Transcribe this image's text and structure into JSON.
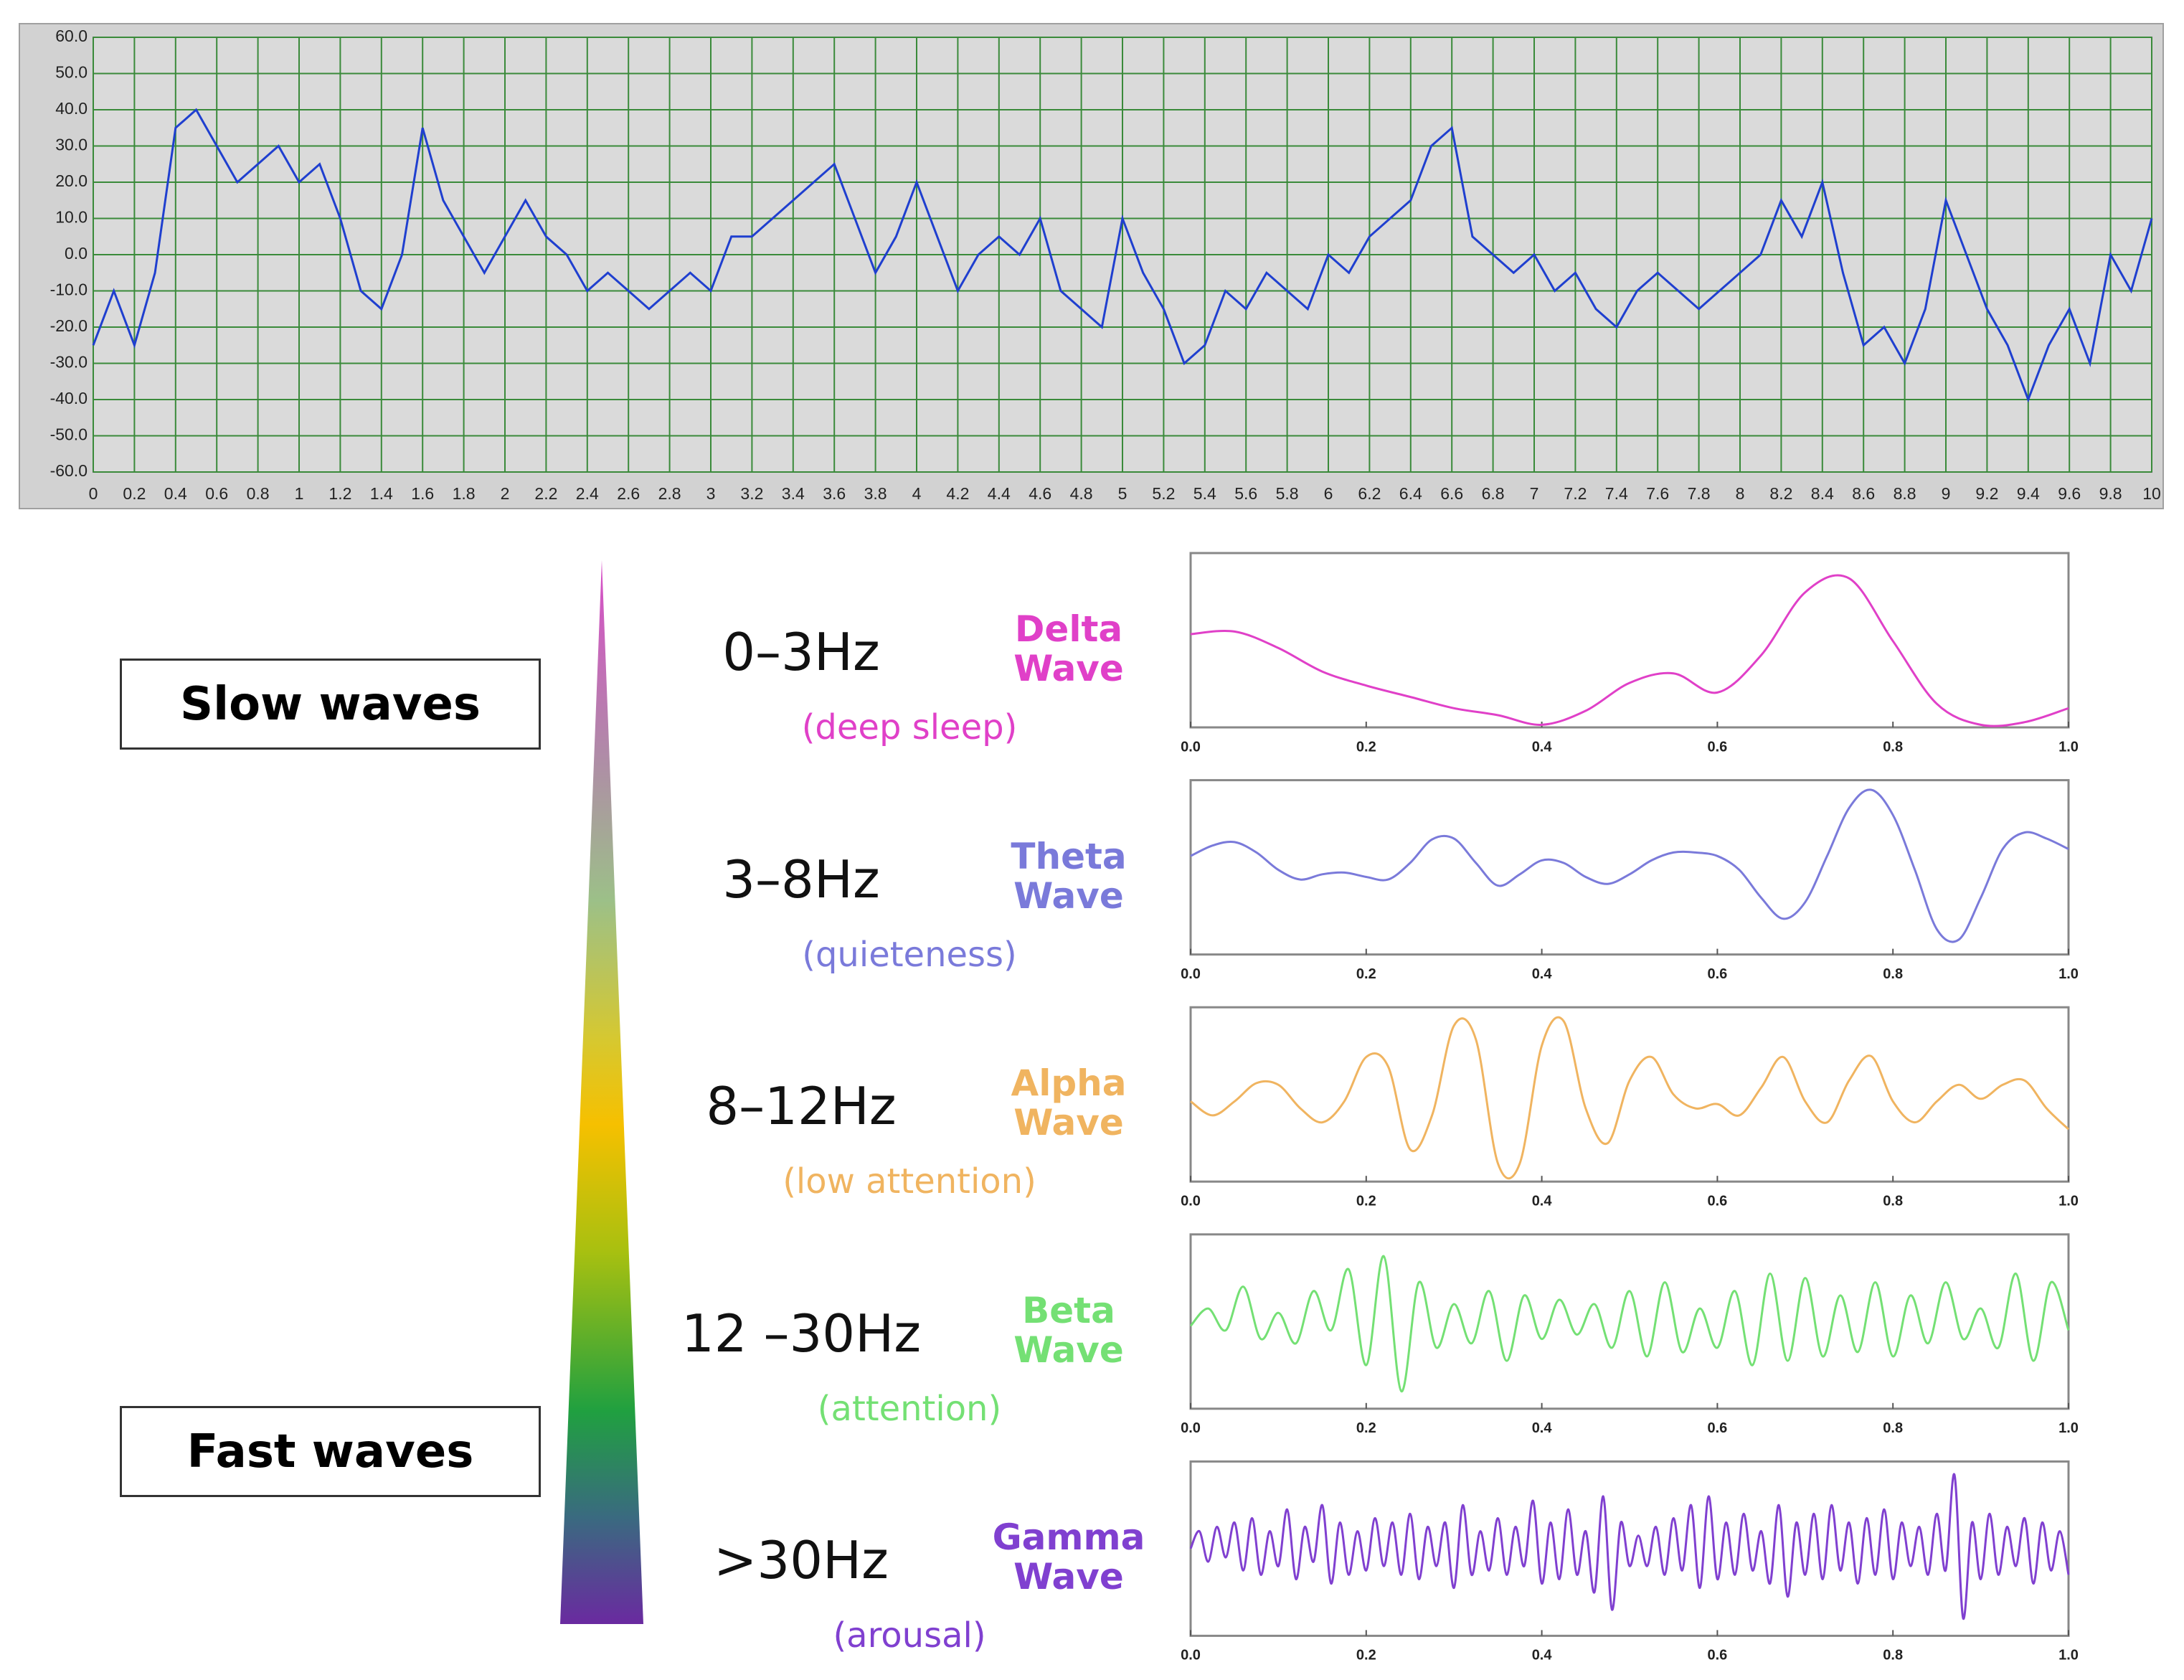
{
  "boxes": [
    "Slow waves",
    "Fast waves"
  ],
  "chart_data": [
    {
      "type": "line",
      "color": "#1f3fcf",
      "x": [
        0,
        0.1,
        0.2,
        0.3,
        0.4,
        0.5,
        0.6,
        0.7,
        0.8,
        0.9,
        1,
        1.1,
        1.2,
        1.3,
        1.4,
        1.5,
        1.6,
        1.7,
        1.8,
        1.9,
        2,
        2.1,
        2.2,
        2.3,
        2.4,
        2.5,
        2.6,
        2.7,
        2.8,
        2.9,
        3,
        3.1,
        3.2,
        3.3,
        3.4,
        3.5,
        3.6,
        3.7,
        3.8,
        3.9,
        4,
        4.1,
        4.2,
        4.3,
        4.4,
        4.5,
        4.6,
        4.7,
        4.8,
        4.9,
        5,
        5.1,
        5.2,
        5.3,
        5.4,
        5.5,
        5.6,
        5.7,
        5.8,
        5.9,
        6,
        6.1,
        6.2,
        6.3,
        6.4,
        6.5,
        6.6,
        6.7,
        6.8,
        6.9,
        7,
        7.1,
        7.2,
        7.3,
        7.4,
        7.5,
        7.6,
        7.7,
        7.8,
        7.9,
        8,
        8.1,
        8.2,
        8.3,
        8.4,
        8.5,
        8.6,
        8.7,
        8.8,
        8.9,
        9,
        9.1,
        9.2,
        9.3,
        9.4,
        9.5,
        9.6,
        9.7,
        9.8,
        9.9,
        10
      ],
      "values": [
        -25,
        -10,
        -25,
        -5,
        35,
        40,
        30,
        20,
        25,
        30,
        20,
        25,
        10,
        -10,
        -15,
        0,
        35,
        15,
        5,
        -5,
        5,
        15,
        5,
        0,
        -10,
        -5,
        -10,
        -15,
        -10,
        -5,
        -10,
        5,
        5,
        10,
        15,
        20,
        25,
        10,
        -5,
        5,
        20,
        5,
        -10,
        0,
        5,
        0,
        10,
        -10,
        -15,
        -20,
        10,
        -5,
        -15,
        -30,
        -25,
        -10,
        -15,
        -5,
        -10,
        -15,
        0,
        -5,
        5,
        10,
        15,
        30,
        35,
        5,
        0,
        -5,
        0,
        -10,
        -5,
        -15,
        -20,
        -10,
        -5,
        -10,
        -15,
        -10,
        -5,
        0,
        15,
        5,
        20,
        -5,
        -25,
        -20,
        -30,
        -15,
        15,
        0,
        -15,
        -25,
        -40,
        -25,
        -15,
        -30,
        0,
        -10,
        10
      ],
      "xlim": [
        0,
        10
      ],
      "ylim": [
        -60,
        60
      ],
      "xticks": [
        0,
        0.2,
        0.4,
        0.6,
        0.8,
        1,
        1.2,
        1.4,
        1.6,
        1.8,
        2,
        2.2,
        2.4,
        2.6,
        2.8,
        3,
        3.2,
        3.4,
        3.6,
        3.8,
        4,
        4.2,
        4.4,
        4.6,
        4.8,
        5,
        5.2,
        5.4,
        5.6,
        5.8,
        6,
        6.2,
        6.4,
        6.6,
        6.8,
        7,
        7.2,
        7.4,
        7.6,
        7.8,
        8,
        8.2,
        8.4,
        8.6,
        8.8,
        9,
        9.2,
        9.4,
        9.6,
        9.8,
        10
      ],
      "yticks": [
        {
          "value": 60,
          "label": "60.0"
        },
        {
          "value": 50,
          "label": "50.0"
        },
        {
          "value": 40,
          "label": "40.0"
        },
        {
          "value": 30,
          "label": "30.0"
        },
        {
          "value": 20,
          "label": "20.0"
        },
        {
          "value": 10,
          "label": "10.0"
        },
        {
          "value": 0,
          "label": "0.0"
        },
        {
          "value": -10,
          "label": "-10.0"
        },
        {
          "value": -20,
          "label": "-20.0"
        },
        {
          "value": -30,
          "label": "-30.0"
        },
        {
          "value": -40,
          "label": "-40.0"
        },
        {
          "value": -50,
          "label": "-50.0"
        },
        {
          "value": -60,
          "label": "-60.0"
        }
      ],
      "grid": true
    },
    {
      "type": "wave",
      "title": "0–3Hz",
      "annotations": [
        "(deep sleep)"
      ],
      "x": [
        0,
        0.05,
        0.1,
        0.15,
        0.2,
        0.25,
        0.3,
        0.35,
        0.4,
        0.45,
        0.5,
        0.55,
        0.6,
        0.65,
        0.7,
        0.75,
        0.8,
        0.85,
        0.9,
        0.95,
        1
      ],
      "series": [
        {
          "name": "Delta Wave",
          "color": "#e040c8",
          "values": [
            0.07,
            0.1,
            -0.09,
            -0.36,
            -0.52,
            -0.65,
            -0.78,
            -0.86,
            -0.97,
            -0.81,
            -0.49,
            -0.38,
            -0.6,
            -0.17,
            0.55,
            0.71,
            -0.01,
            -0.73,
            -0.97,
            -0.94,
            -0.78
          ]
        }
      ],
      "xlim": [
        0,
        1
      ],
      "ylim": [
        -1,
        1
      ],
      "xticks": [
        {
          "value": 0,
          "label": "0.0"
        },
        0.2,
        0.4,
        0.6,
        0.8,
        {
          "value": 1,
          "label": "1.0"
        }
      ]
    },
    {
      "type": "wave",
      "title": "3–8Hz",
      "annotations": [
        "(quieteness)"
      ],
      "x": [
        0,
        0.025,
        0.05,
        0.075,
        0.1,
        0.125,
        0.15,
        0.175,
        0.2,
        0.225,
        0.25,
        0.275,
        0.3,
        0.325,
        0.35,
        0.375,
        0.4,
        0.425,
        0.45,
        0.475,
        0.5,
        0.525,
        0.55,
        0.575,
        0.6,
        0.625,
        0.65,
        0.675,
        0.7,
        0.725,
        0.75,
        0.775,
        0.8,
        0.825,
        0.85,
        0.875,
        0.9,
        0.925,
        0.95,
        0.975,
        1
      ],
      "series": [
        {
          "name": "Theta Wave",
          "color": "#7a7ada",
          "values": [
            0.13,
            0.25,
            0.29,
            0.17,
            -0.03,
            -0.14,
            -0.08,
            -0.06,
            -0.11,
            -0.14,
            0.05,
            0.32,
            0.33,
            0.05,
            -0.21,
            -0.08,
            0.08,
            0.05,
            -0.11,
            -0.19,
            -0.08,
            0.08,
            0.17,
            0.17,
            0.13,
            -0.03,
            -0.35,
            -0.59,
            -0.4,
            0.13,
            0.68,
            0.89,
            0.6,
            -0.03,
            -0.71,
            -0.83,
            -0.35,
            0.21,
            0.4,
            0.33,
            0.21
          ]
        }
      ],
      "xlim": [
        0,
        1
      ],
      "ylim": [
        -1,
        1
      ],
      "xticks": [
        {
          "value": 0,
          "label": "0.0"
        },
        0.2,
        0.4,
        0.6,
        0.8,
        {
          "value": 1,
          "label": "1.0"
        }
      ]
    },
    {
      "type": "wave",
      "title": "8–12Hz",
      "annotations": [
        "(low attention)"
      ],
      "x": [
        0,
        0.025,
        0.05,
        0.075,
        0.1,
        0.125,
        0.15,
        0.175,
        0.2,
        0.225,
        0.25,
        0.275,
        0.3,
        0.325,
        0.35,
        0.375,
        0.4,
        0.425,
        0.45,
        0.475,
        0.5,
        0.525,
        0.55,
        0.575,
        0.6,
        0.625,
        0.65,
        0.675,
        0.7,
        0.725,
        0.75,
        0.775,
        0.8,
        0.825,
        0.85,
        0.875,
        0.9,
        0.925,
        0.95,
        0.975,
        1
      ],
      "series": [
        {
          "name": "Alpha Wave",
          "color": "#f0b460",
          "values": [
            -0.08,
            -0.24,
            -0.08,
            0.13,
            0.11,
            -0.16,
            -0.32,
            -0.08,
            0.43,
            0.32,
            -0.63,
            -0.24,
            0.79,
            0.63,
            -0.79,
            -0.79,
            0.56,
            0.84,
            -0.16,
            -0.56,
            0.16,
            0.43,
            0,
            -0.16,
            -0.11,
            -0.24,
            0.08,
            0.43,
            -0.08,
            -0.32,
            0.16,
            0.44,
            -0.08,
            -0.32,
            -0.08,
            0.11,
            -0.05,
            0.11,
            0.16,
            -0.16,
            -0.4
          ]
        }
      ],
      "xlim": [
        0,
        1
      ],
      "ylim": [
        -1,
        1
      ],
      "xticks": [
        {
          "value": 0,
          "label": "0.0"
        },
        0.2,
        0.4,
        0.6,
        0.8,
        {
          "value": 1,
          "label": "1.0"
        }
      ]
    },
    {
      "type": "wave",
      "title": "12 –30Hz",
      "annotations": [
        "(attention)"
      ],
      "x": [
        0,
        0.02,
        0.04,
        0.06,
        0.08,
        0.1,
        0.12,
        0.14,
        0.16,
        0.18,
        0.2,
        0.22,
        0.24,
        0.26,
        0.28,
        0.3,
        0.32,
        0.34,
        0.36,
        0.38,
        0.4,
        0.42,
        0.44,
        0.46,
        0.48,
        0.5,
        0.52,
        0.54,
        0.56,
        0.58,
        0.6,
        0.62,
        0.64,
        0.66,
        0.68,
        0.7,
        0.72,
        0.74,
        0.76,
        0.78,
        0.8,
        0.82,
        0.84,
        0.86,
        0.88,
        0.9,
        0.92,
        0.94,
        0.96,
        0.98,
        1
      ],
      "series": [
        {
          "name": "Beta Wave",
          "color": "#74e074",
          "values": [
            -0.05,
            0.15,
            -0.1,
            0.4,
            -0.2,
            0.1,
            -0.25,
            0.35,
            -0.1,
            0.6,
            -0.5,
            0.75,
            -0.8,
            0.45,
            -0.3,
            0.2,
            -0.25,
            0.35,
            -0.45,
            0.3,
            -0.2,
            0.25,
            -0.15,
            0.2,
            -0.3,
            0.35,
            -0.4,
            0.45,
            -0.35,
            0.15,
            -0.3,
            0.35,
            -0.5,
            0.55,
            -0.45,
            0.5,
            -0.4,
            0.3,
            -0.35,
            0.45,
            -0.4,
            0.3,
            -0.25,
            0.45,
            -0.2,
            0.15,
            -0.3,
            0.55,
            -0.45,
            0.45,
            -0.1
          ]
        }
      ],
      "xlim": [
        0,
        1
      ],
      "ylim": [
        -1,
        1
      ],
      "xticks": [
        {
          "value": 0,
          "label": "0.0"
        },
        0.2,
        0.4,
        0.6,
        0.8,
        {
          "value": 1,
          "label": "1.0"
        }
      ]
    },
    {
      "type": "wave",
      "title": ">30Hz",
      "annotations": [
        "(arousal)"
      ],
      "x": [
        0,
        0.01,
        0.02,
        0.03,
        0.04,
        0.05,
        0.06,
        0.07,
        0.08,
        0.09,
        0.1,
        0.11,
        0.12,
        0.13,
        0.14,
        0.15,
        0.16,
        0.17,
        0.18,
        0.19,
        0.2,
        0.21,
        0.22,
        0.23,
        0.24,
        0.25,
        0.26,
        0.27,
        0.28,
        0.29,
        0.3,
        0.31,
        0.32,
        0.33,
        0.34,
        0.35,
        0.36,
        0.37,
        0.38,
        0.39,
        0.4,
        0.41,
        0.42,
        0.43,
        0.44,
        0.45,
        0.46,
        0.47,
        0.48,
        0.49,
        0.5,
        0.51,
        0.52,
        0.53,
        0.54,
        0.55,
        0.56,
        0.57,
        0.58,
        0.59,
        0.6,
        0.61,
        0.62,
        0.63,
        0.64,
        0.65,
        0.66,
        0.67,
        0.68,
        0.69,
        0.7,
        0.71,
        0.72,
        0.73,
        0.74,
        0.75,
        0.76,
        0.77,
        0.78,
        0.79,
        0.8,
        0.81,
        0.82,
        0.83,
        0.84,
        0.85,
        0.86,
        0.87,
        0.88,
        0.89,
        0.9,
        0.91,
        0.92,
        0.93,
        0.94,
        0.95,
        0.96,
        0.97,
        0.98,
        0.99,
        1
      ],
      "series": [
        {
          "name": "Gamma Wave",
          "color": "#8040d0",
          "values": [
            0,
            0.2,
            -0.15,
            0.25,
            -0.1,
            0.3,
            -0.25,
            0.35,
            -0.3,
            0.2,
            -0.2,
            0.45,
            -0.35,
            0.25,
            -0.15,
            0.5,
            -0.4,
            0.3,
            -0.3,
            0.2,
            -0.25,
            0.35,
            -0.2,
            0.3,
            -0.3,
            0.4,
            -0.35,
            0.25,
            -0.2,
            0.3,
            -0.45,
            0.5,
            -0.3,
            0.2,
            -0.25,
            0.35,
            -0.3,
            0.25,
            -0.2,
            0.55,
            -0.4,
            0.3,
            -0.35,
            0.45,
            -0.3,
            0.2,
            -0.5,
            0.6,
            -0.7,
            0.3,
            -0.2,
            0.15,
            -0.2,
            0.25,
            -0.3,
            0.35,
            -0.25,
            0.5,
            -0.45,
            0.6,
            -0.35,
            0.3,
            -0.3,
            0.4,
            -0.25,
            0.2,
            -0.4,
            0.5,
            -0.55,
            0.3,
            -0.3,
            0.4,
            -0.35,
            0.5,
            -0.25,
            0.3,
            -0.4,
            0.35,
            -0.3,
            0.45,
            -0.35,
            0.3,
            -0.2,
            0.25,
            -0.3,
            0.4,
            -0.25,
            0.85,
            -0.8,
            0.3,
            -0.35,
            0.4,
            -0.3,
            0.25,
            -0.2,
            0.35,
            -0.4,
            0.3,
            -0.25,
            0.2,
            -0.3
          ]
        }
      ],
      "xlim": [
        0,
        1
      ],
      "ylim": [
        -1,
        1
      ],
      "xticks": [
        {
          "value": 0,
          "label": "0.0"
        },
        0.2,
        0.4,
        0.6,
        0.8,
        {
          "value": 1,
          "label": "1.0"
        }
      ]
    }
  ]
}
